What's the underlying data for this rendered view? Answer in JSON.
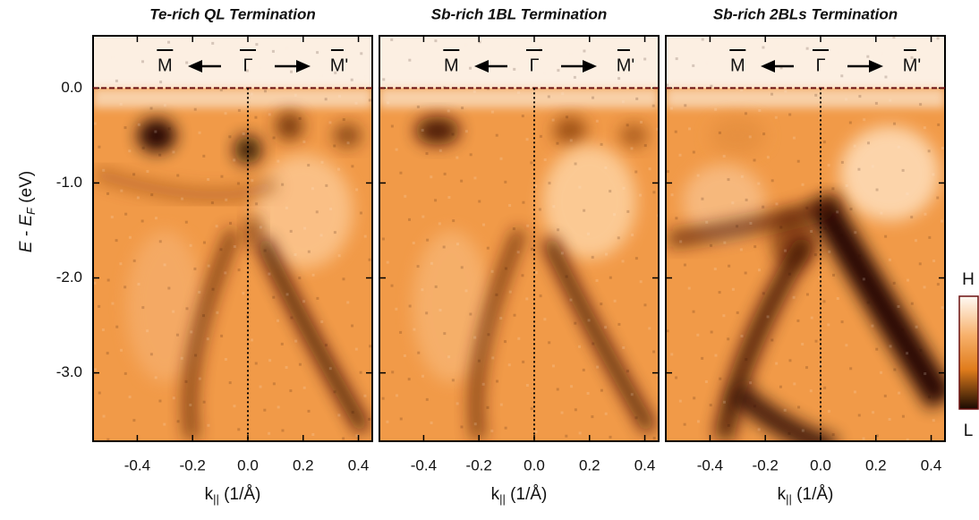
{
  "chart_data": [
    {
      "type": "image",
      "title": "Te-rich QL Termination",
      "xlim": [
        -0.56,
        0.45
      ],
      "ylim": [
        -3.72,
        0.55
      ],
      "xticks": [
        -0.4,
        -0.2,
        {
          "value": 0,
          "label": "0.0"
        },
        0.2,
        0.4
      ],
      "yticks": [
        {
          "value": 0,
          "label": "0.0"
        },
        {
          "value": -1,
          "label": "-1.0"
        },
        {
          "value": -2,
          "label": "-2.0"
        },
        {
          "value": -3,
          "label": "-3.0"
        }
      ],
      "y_label": {
        "main": "E - E",
        "sub": "F",
        "unit": " (eV)"
      },
      "x_label": {
        "main": "k",
        "sub": "||",
        "unit": " (1/Å)"
      },
      "annotations": [
        {
          "text": "M",
          "x": -0.3
        },
        {
          "text": "Γ",
          "x": 0
        },
        {
          "text": "M'",
          "x": 0.33
        }
      ]
    },
    {
      "type": "image",
      "title": "Sb-rich 1BL Termination",
      "xlim": [
        -0.56,
        0.45
      ],
      "ylim": [
        -3.72,
        0.55
      ],
      "xticks": [
        -0.4,
        -0.2,
        {
          "value": 0,
          "label": "0.0"
        },
        0.2,
        0.4
      ],
      "yticks": [
        0,
        -1,
        -2,
        -3
      ],
      "x_label": {
        "main": "k",
        "sub": "||",
        "unit": " (1/Å)"
      },
      "annotations": [
        {
          "text": "M",
          "x": -0.3
        },
        {
          "text": "Γ",
          "x": 0
        },
        {
          "text": "M'",
          "x": 0.33
        }
      ]
    },
    {
      "type": "image",
      "title": "Sb-rich 2BLs Termination",
      "xlim": [
        -0.56,
        0.45
      ],
      "ylim": [
        -3.72,
        0.55
      ],
      "xticks": [
        -0.4,
        -0.2,
        {
          "value": 0,
          "label": "0.0"
        },
        0.2,
        0.4
      ],
      "yticks": [
        0,
        -1,
        -2,
        -3
      ],
      "x_label": {
        "main": "k",
        "sub": "||",
        "unit": " (1/Å)"
      },
      "annotations": [
        {
          "text": "M",
          "x": -0.3
        },
        {
          "text": "Γ",
          "x": 0
        },
        {
          "text": "M'",
          "x": 0.33
        }
      ]
    }
  ],
  "colorbar": {
    "high": "H",
    "low": "L"
  }
}
